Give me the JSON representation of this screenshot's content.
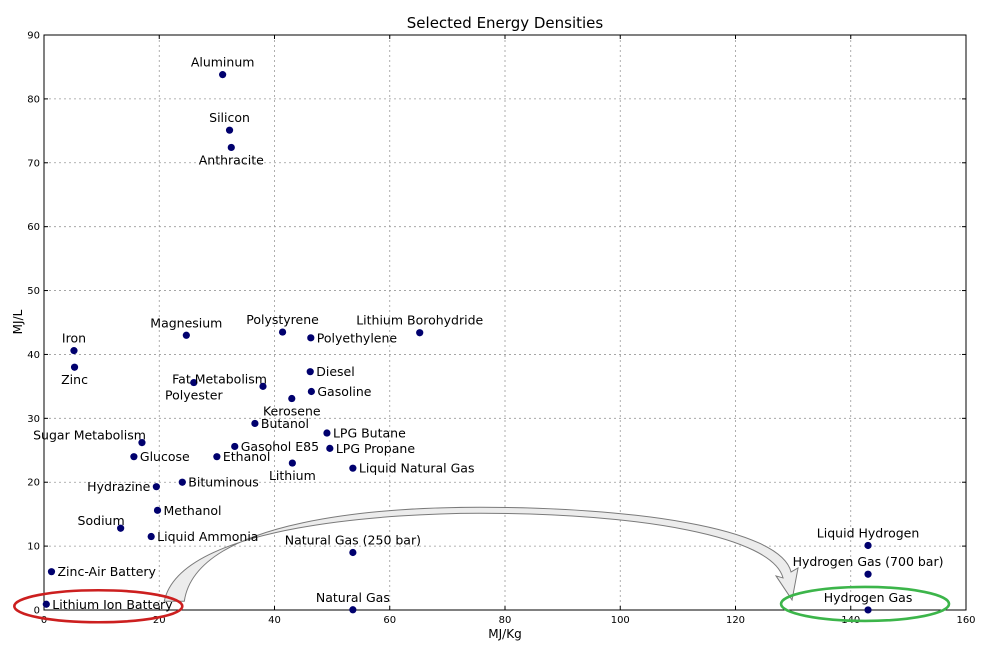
{
  "chart_data": {
    "type": "scatter",
    "title": "Selected Energy Densities",
    "xlabel": "MJ/Kg",
    "ylabel": "MJ/L",
    "xlim": [
      0,
      160
    ],
    "ylim": [
      0,
      90
    ],
    "xticks": [
      "0",
      "20",
      "40",
      "60",
      "80",
      "100",
      "120",
      "140",
      "160"
    ],
    "yticks": [
      "0",
      "10",
      "20",
      "30",
      "40",
      "50",
      "60",
      "70",
      "80",
      "90"
    ],
    "grid": true,
    "point_color": "#00006e",
    "points": [
      {
        "label": "Aluminum",
        "x": 31,
        "y": 83.8,
        "pos": "above"
      },
      {
        "label": "Silicon",
        "x": 32.2,
        "y": 75.1,
        "pos": "above"
      },
      {
        "label": "Anthracite",
        "x": 32.5,
        "y": 72.4,
        "pos": "below"
      },
      {
        "label": "Iron",
        "x": 5.2,
        "y": 40.6,
        "pos": "above"
      },
      {
        "label": "Zinc",
        "x": 5.3,
        "y": 38,
        "pos": "below"
      },
      {
        "label": "Magnesium",
        "x": 24.7,
        "y": 43,
        "pos": "above"
      },
      {
        "label": "Polystyrene",
        "x": 41.4,
        "y": 43.5,
        "pos": "above"
      },
      {
        "label": "Polyethylene",
        "x": 46.3,
        "y": 42.6,
        "pos": "right"
      },
      {
        "label": "Lithium Borohydride",
        "x": 65.2,
        "y": 43.4,
        "pos": "above"
      },
      {
        "label": "Polyester",
        "x": 26,
        "y": 35.6,
        "pos": "below"
      },
      {
        "label": "Fat Metabolism",
        "x": 38,
        "y": 35,
        "pos": "leftabove"
      },
      {
        "label": "Diesel",
        "x": 46.2,
        "y": 37.3,
        "pos": "right"
      },
      {
        "label": "Gasoline",
        "x": 46.4,
        "y": 34.2,
        "pos": "right"
      },
      {
        "label": "Kerosene",
        "x": 43,
        "y": 33.1,
        "pos": "below"
      },
      {
        "label": "Butanol",
        "x": 36.6,
        "y": 29.2,
        "pos": "right"
      },
      {
        "label": "Sugar Metabolism",
        "x": 17,
        "y": 26.2,
        "pos": "leftabove"
      },
      {
        "label": "LPG Butane",
        "x": 49.1,
        "y": 27.7,
        "pos": "right"
      },
      {
        "label": "Gasohol E85",
        "x": 33.1,
        "y": 25.6,
        "pos": "right"
      },
      {
        "label": "LPG Propane",
        "x": 49.6,
        "y": 25.3,
        "pos": "right"
      },
      {
        "label": "Glucose",
        "x": 15.6,
        "y": 24,
        "pos": "right"
      },
      {
        "label": "Ethanol",
        "x": 30,
        "y": 24,
        "pos": "right"
      },
      {
        "label": "Lithium",
        "x": 43.1,
        "y": 23,
        "pos": "below"
      },
      {
        "label": "Liquid Natural Gas",
        "x": 53.6,
        "y": 22.2,
        "pos": "right"
      },
      {
        "label": "Hydrazine",
        "x": 19.5,
        "y": 19.3,
        "pos": "left"
      },
      {
        "label": "Bituminous",
        "x": 24,
        "y": 20,
        "pos": "right"
      },
      {
        "label": "Methanol",
        "x": 19.7,
        "y": 15.6,
        "pos": "right"
      },
      {
        "label": "Sodium",
        "x": 13.3,
        "y": 12.8,
        "pos": "leftabove"
      },
      {
        "label": "Liquid Ammonia",
        "x": 18.6,
        "y": 11.5,
        "pos": "right"
      },
      {
        "label": "Natural Gas (250 bar)",
        "x": 53.6,
        "y": 9,
        "pos": "above"
      },
      {
        "label": "Zinc-Air Battery",
        "x": 1.3,
        "y": 6,
        "pos": "right"
      },
      {
        "label": "Liquid Hydrogen",
        "x": 143,
        "y": 10.1,
        "pos": "above"
      },
      {
        "label": "Hydrogen Gas (700 bar)",
        "x": 143,
        "y": 5.6,
        "pos": "above"
      },
      {
        "label": "Lithium Ion Battery",
        "x": 0.4,
        "y": 0.9,
        "pos": "right"
      },
      {
        "label": "Natural Gas",
        "x": 53.6,
        "y": 0.036,
        "pos": "above"
      },
      {
        "label": "Hydrogen Gas",
        "x": 143,
        "y": 0.01,
        "pos": "above"
      }
    ],
    "annotations": {
      "highlight_low": {
        "label": "Lithium Ion Battery",
        "color": "#cc1f1f"
      },
      "highlight_high": {
        "label": "Hydrogen Gas",
        "color": "#3cb54a"
      },
      "arrow": {
        "from": "Lithium Ion Battery",
        "to": "Hydrogen Gas",
        "fill": "#ececec",
        "stroke": "#7a7a7a"
      }
    }
  }
}
